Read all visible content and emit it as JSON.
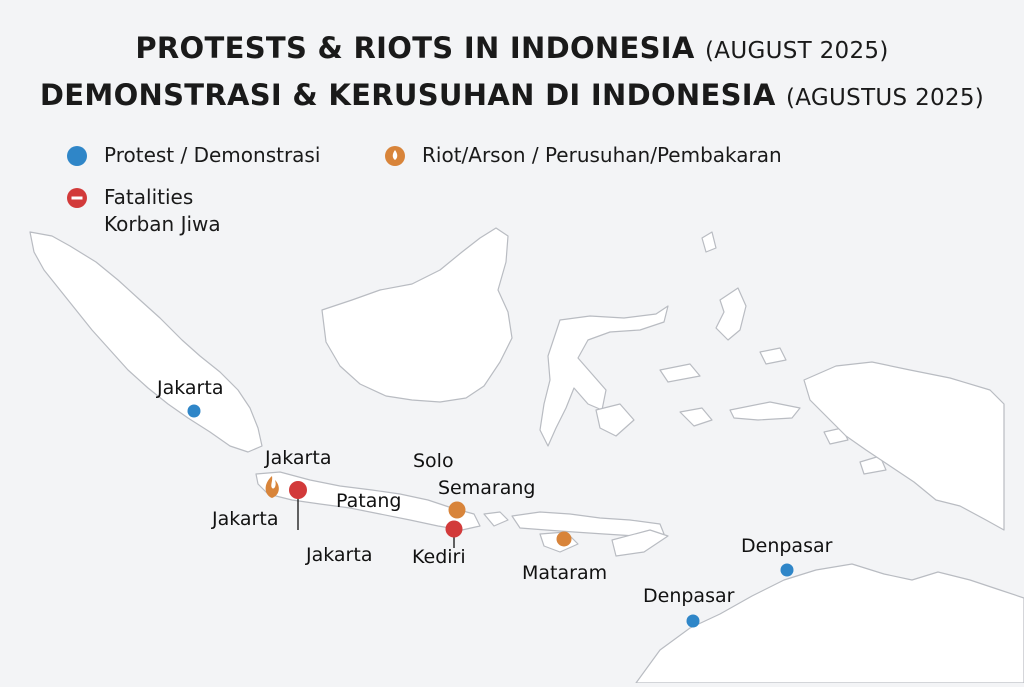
{
  "title": {
    "line1_main": "PROTESTS & RIOTS IN INDONESIA",
    "line1_sub": "(AUGUST 2025)",
    "line2_main": "DEMONSTRASI & KERUSUHAN DI INDONESIA",
    "line2_sub": "(AGUSTUS 2025)"
  },
  "legend": {
    "protest": "Protest / Demonstrasi",
    "riot": "Riot/Arson / Perusuhan/Pembakaran",
    "fatalities_line1": "Fatalities",
    "fatalities_line2": "Korban Jiwa"
  },
  "colors": {
    "protest": "#2f86c8",
    "riot": "#d8843a",
    "fatality": "#d23a3a",
    "land": "#ffffff",
    "land_stroke": "#b9bcc2",
    "background": "#f3f4f6"
  },
  "labels": {
    "sumatra_jakarta": "Jakarta",
    "jakarta_top": "Jakarta",
    "jakarta_left": "Jakarta",
    "jakarta_bottom": "Jakarta",
    "patang": "Patang",
    "solo": "Solo",
    "semarang": "Semarang",
    "kediri": "Kediri",
    "mataram": "Mataram",
    "denpasar_east": "Denpasar",
    "denpasar_south": "Denpasar"
  },
  "markers": [
    {
      "name": "sumatra-jakarta",
      "type": "protest"
    },
    {
      "name": "jakarta-riot",
      "type": "riot"
    },
    {
      "name": "jakarta-fatality",
      "type": "fatality"
    },
    {
      "name": "semarang-riot",
      "type": "riot"
    },
    {
      "name": "kediri-fatality",
      "type": "fatality"
    },
    {
      "name": "mataram-riot",
      "type": "riot"
    },
    {
      "name": "denpasar-east-protest",
      "type": "protest"
    },
    {
      "name": "denpasar-south-protest",
      "type": "protest"
    }
  ]
}
